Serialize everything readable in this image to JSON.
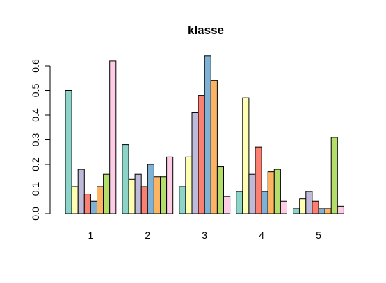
{
  "chart_data": {
    "type": "bar",
    "title": "klasse",
    "xlabel": "",
    "ylabel": "",
    "categories": [
      "1",
      "2",
      "3",
      "4",
      "5"
    ],
    "ylim": [
      0,
      0.65
    ],
    "yticks": [
      "0.0",
      "0.1",
      "0.2",
      "0.3",
      "0.4",
      "0.5",
      "0.6"
    ],
    "ytick_values": [
      0,
      0.1,
      0.2,
      0.3,
      0.4,
      0.5,
      0.6
    ],
    "grid": false,
    "legend": "none",
    "series": [
      {
        "color": "#8DD3C7",
        "values": [
          0.5,
          0.28,
          0.11,
          0.09,
          0.02
        ]
      },
      {
        "color": "#FFFFB3",
        "values": [
          0.11,
          0.14,
          0.23,
          0.47,
          0.06
        ]
      },
      {
        "color": "#BEBADA",
        "values": [
          0.18,
          0.16,
          0.41,
          0.16,
          0.09
        ]
      },
      {
        "color": "#FB8072",
        "values": [
          0.08,
          0.11,
          0.48,
          0.27,
          0.05
        ]
      },
      {
        "color": "#80B1D3",
        "values": [
          0.05,
          0.2,
          0.64,
          0.09,
          0.02
        ]
      },
      {
        "color": "#FDB462",
        "values": [
          0.11,
          0.15,
          0.54,
          0.17,
          0.02
        ]
      },
      {
        "color": "#B3DE69",
        "values": [
          0.16,
          0.15,
          0.19,
          0.18,
          0.31
        ]
      },
      {
        "color": "#FCCDE5",
        "values": [
          0.62,
          0.23,
          0.07,
          0.05,
          0.03
        ]
      }
    ]
  }
}
